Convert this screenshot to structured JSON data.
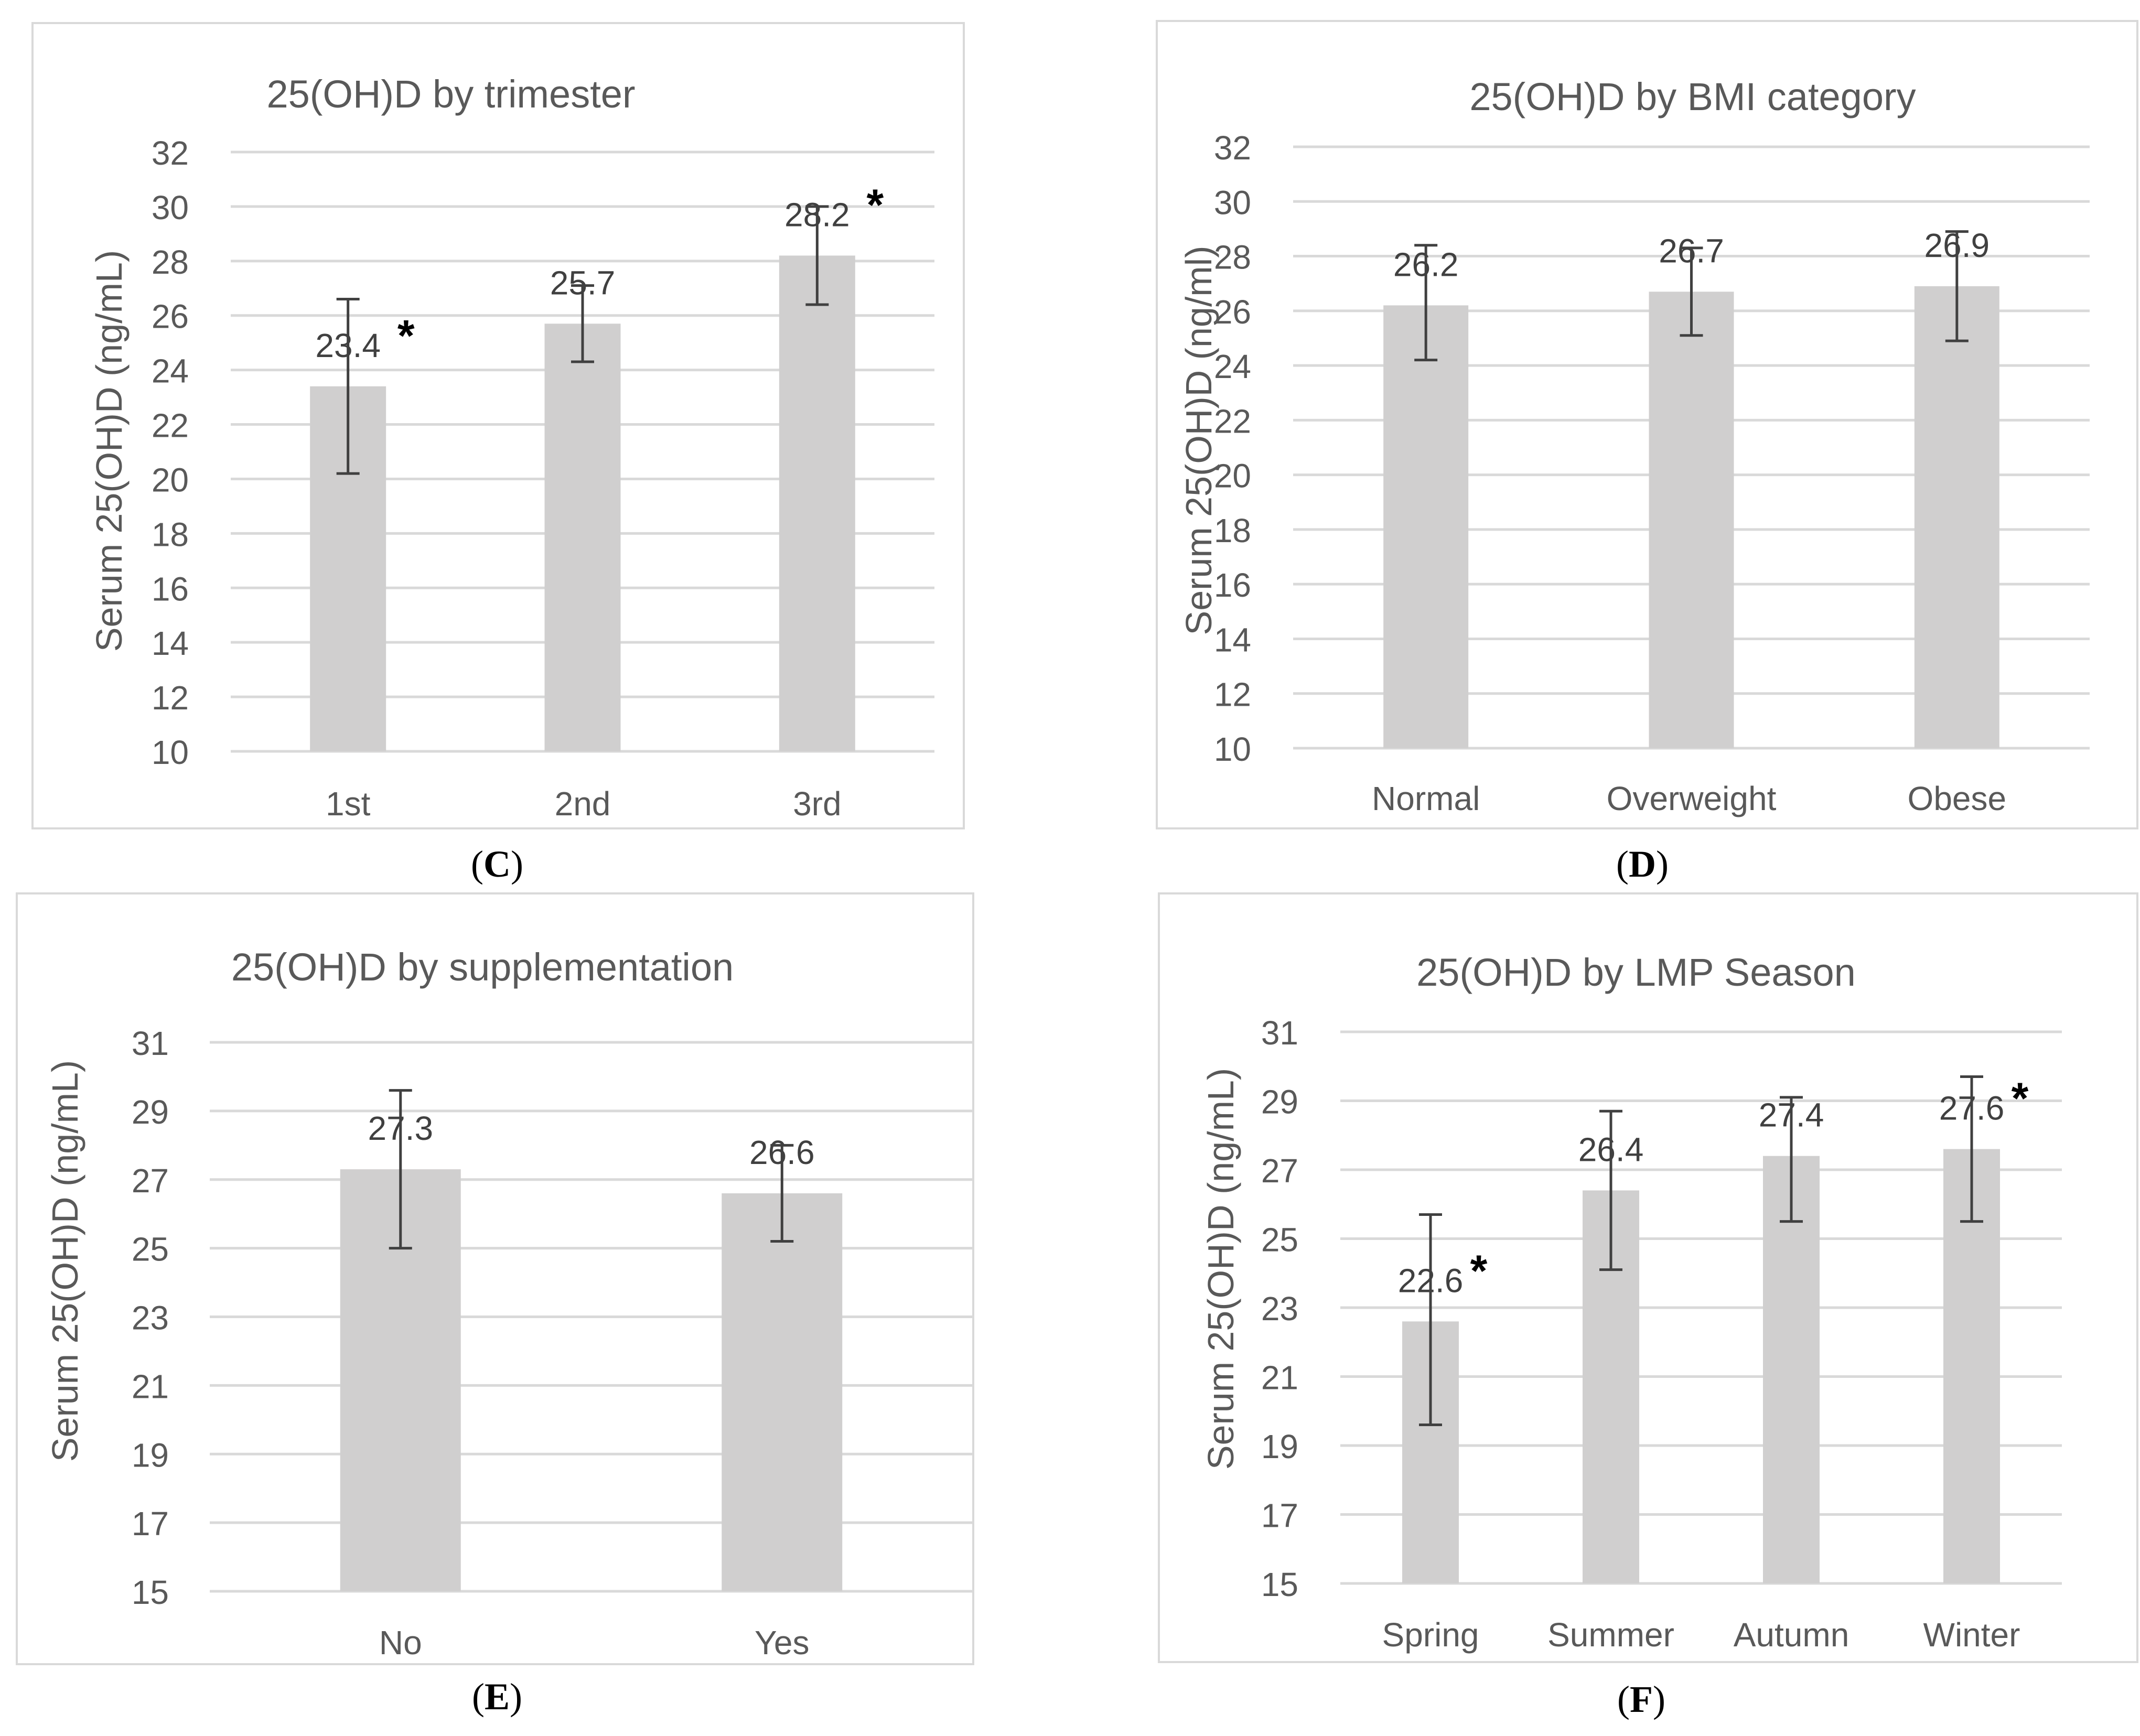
{
  "colors": {
    "bar": "#d0cfcf",
    "grid": "#d9d9d9",
    "frame": "#d9d9d9",
    "error": "#404040",
    "text": "#595959"
  },
  "chart_data": [
    {
      "panel": "C",
      "type": "bar",
      "title": "25(OH)D by trimester",
      "ylabel": "Serum 25(OH)D (ng/mL)",
      "xlabel": "",
      "categories": [
        "1st",
        "2nd",
        "3rd"
      ],
      "values": [
        23.4,
        25.7,
        28.2
      ],
      "value_labels": [
        "23.4",
        "25.7",
        "28.2"
      ],
      "error_low": [
        20.2,
        24.3,
        26.4
      ],
      "error_high": [
        26.6,
        27.1,
        30.0
      ],
      "significant": [
        true,
        false,
        true
      ],
      "ylim": [
        10,
        32
      ],
      "yticks": [
        10,
        12,
        14,
        16,
        18,
        20,
        22,
        24,
        26,
        28,
        30,
        32
      ],
      "grid": true
    },
    {
      "panel": "D",
      "type": "bar",
      "title": "25(OH)D by BMI category",
      "ylabel": "Serum 25(OH)D (ng/ml)",
      "xlabel": "",
      "categories": [
        "Normal",
        "Overweight",
        "Obese"
      ],
      "values": [
        26.2,
        26.7,
        26.9
      ],
      "value_labels": [
        "26.2",
        "26.7",
        "26.9"
      ],
      "error_low": [
        24.2,
        25.1,
        24.9
      ],
      "error_high": [
        28.4,
        28.3,
        28.9
      ],
      "significant": [
        false,
        false,
        false
      ],
      "ylim": [
        10,
        32
      ],
      "yticks": [
        10,
        12,
        14,
        16,
        18,
        20,
        22,
        24,
        26,
        28,
        30,
        32
      ],
      "grid": true
    },
    {
      "panel": "E",
      "type": "bar",
      "title": "25(OH)D by supplementation",
      "ylabel": "Serum 25(OH)D (ng/mL)",
      "xlabel": "",
      "categories": [
        "No",
        "Yes"
      ],
      "values": [
        27.3,
        26.6
      ],
      "value_labels": [
        "27.3",
        "26.6"
      ],
      "error_low": [
        25.0,
        25.2
      ],
      "error_high": [
        29.6,
        28.0
      ],
      "significant": [
        false,
        false
      ],
      "ylim": [
        15,
        31
      ],
      "yticks": [
        15,
        17,
        19,
        21,
        23,
        25,
        27,
        29,
        31
      ],
      "grid": true
    },
    {
      "panel": "F",
      "type": "bar",
      "title": "25(OH)D by LMP Season",
      "ylabel": "Serum 25(OH)D (ng/mL)",
      "xlabel": "",
      "categories": [
        "Spring",
        "Summer",
        "Autumn",
        "Winter"
      ],
      "values": [
        22.6,
        26.4,
        27.4,
        27.6
      ],
      "value_labels": [
        "22.6",
        "26.4",
        "27.4",
        "27.6"
      ],
      "error_low": [
        19.6,
        24.1,
        25.5,
        25.5
      ],
      "error_high": [
        25.7,
        28.7,
        29.1,
        29.7
      ],
      "significant": [
        true,
        false,
        false,
        true
      ],
      "ylim": [
        15,
        31
      ],
      "yticks": [
        15,
        17,
        19,
        21,
        23,
        25,
        27,
        29,
        31
      ],
      "grid": true
    }
  ],
  "significance_marker": "*"
}
